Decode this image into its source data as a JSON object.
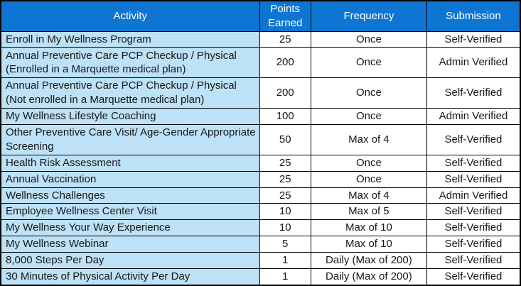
{
  "colors": {
    "header_bg": "#0e76d2",
    "header_text": "#ffffff",
    "activity_bg": "#bde1f6",
    "row_bg": "#ffffff",
    "border": "#000000",
    "text": "#171717"
  },
  "table": {
    "headers": [
      "Activity",
      "Points Earned",
      "Frequency",
      "Submission"
    ],
    "rows": [
      {
        "activity": "Enroll in My Wellness Program",
        "points": "25",
        "frequency": "Once",
        "submission": "Self-Verified"
      },
      {
        "activity": "Annual Preventive Care PCP Checkup / Physical (Enrolled in a Marquette medical plan)",
        "points": "200",
        "frequency": "Once",
        "submission": "Admin Verified"
      },
      {
        "activity": "Annual Preventive Care PCP Checkup / Physical (Not enrolled in a Marquette medical plan)",
        "points": "200",
        "frequency": "Once",
        "submission": "Self-Verified"
      },
      {
        "activity": "My Wellness Lifestyle Coaching",
        "points": "100",
        "frequency": "Once",
        "submission": "Admin Verified"
      },
      {
        "activity": "Other Preventive Care Visit/ Age-Gender Appropriate Screening",
        "points": "50",
        "frequency": "Max of 4",
        "submission": "Self-Verified"
      },
      {
        "activity": "Health Risk Assessment",
        "points": "25",
        "frequency": "Once",
        "submission": "Self-Verified"
      },
      {
        "activity": "Annual Vaccination",
        "points": "25",
        "frequency": "Once",
        "submission": "Self-Verified"
      },
      {
        "activity": "Wellness Challenges",
        "points": "25",
        "frequency": "Max of 4",
        "submission": "Admin Verified"
      },
      {
        "activity": "Employee Wellness Center Visit",
        "points": "10",
        "frequency": "Max of 5",
        "submission": "Self-Verified"
      },
      {
        "activity": "My Wellness Your Way Experience",
        "points": "10",
        "frequency": "Max of 10",
        "submission": "Self-Verified"
      },
      {
        "activity": "My Wellness Webinar",
        "points": "5",
        "frequency": "Max of 10",
        "submission": "Self-Verified"
      },
      {
        "activity": "8,000 Steps Per Day",
        "points": "1",
        "frequency": "Daily (Max of 200)",
        "submission": "Self-Verified"
      },
      {
        "activity": "30 Minutes of Physical Activity Per Day",
        "points": "1",
        "frequency": "Daily (Max of 200)",
        "submission": "Self-Verified"
      }
    ]
  }
}
